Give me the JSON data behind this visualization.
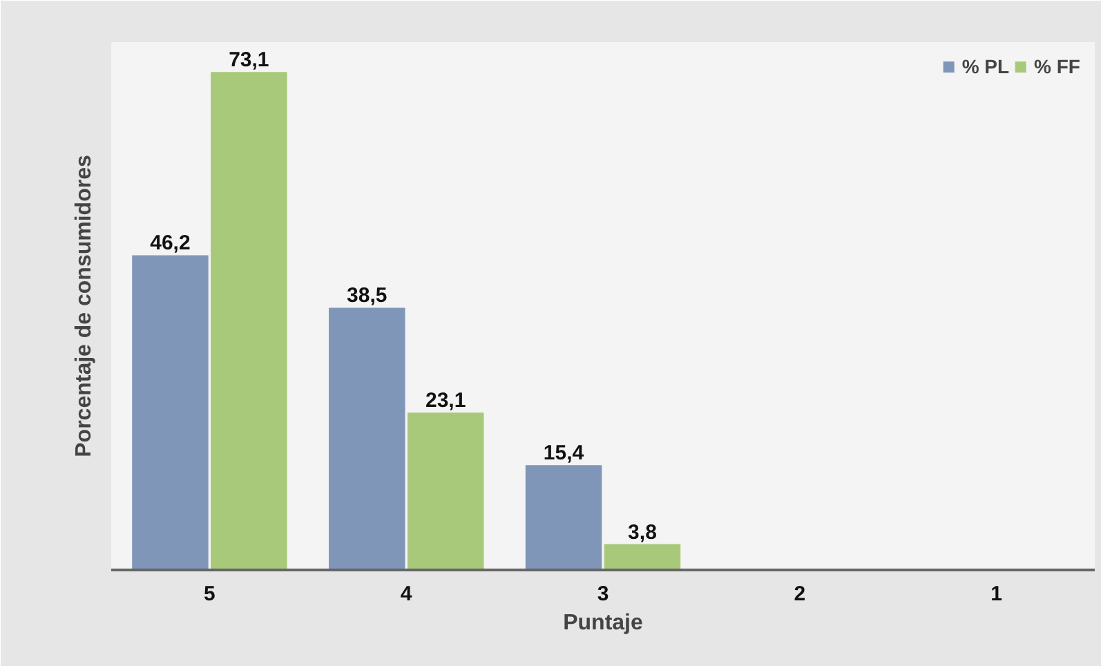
{
  "chart_data": {
    "type": "bar",
    "xlabel": "Puntaje",
    "ylabel": "Porcentaje de consumidores",
    "categories": [
      "5",
      "4",
      "3",
      "2",
      "1"
    ],
    "series": [
      {
        "name": "% PL",
        "color": "#7f96b8",
        "values": [
          46.2,
          38.5,
          15.4,
          null,
          null
        ],
        "value_labels": [
          "46,2",
          "38,5",
          "15,4",
          null,
          null
        ]
      },
      {
        "name": "% FF",
        "color": "#a8c97a",
        "values": [
          73.1,
          23.1,
          3.8,
          null,
          null
        ],
        "value_labels": [
          "73,1",
          "23,1",
          "3,8",
          null,
          null
        ]
      }
    ],
    "legend": "top right",
    "grid": false
  }
}
